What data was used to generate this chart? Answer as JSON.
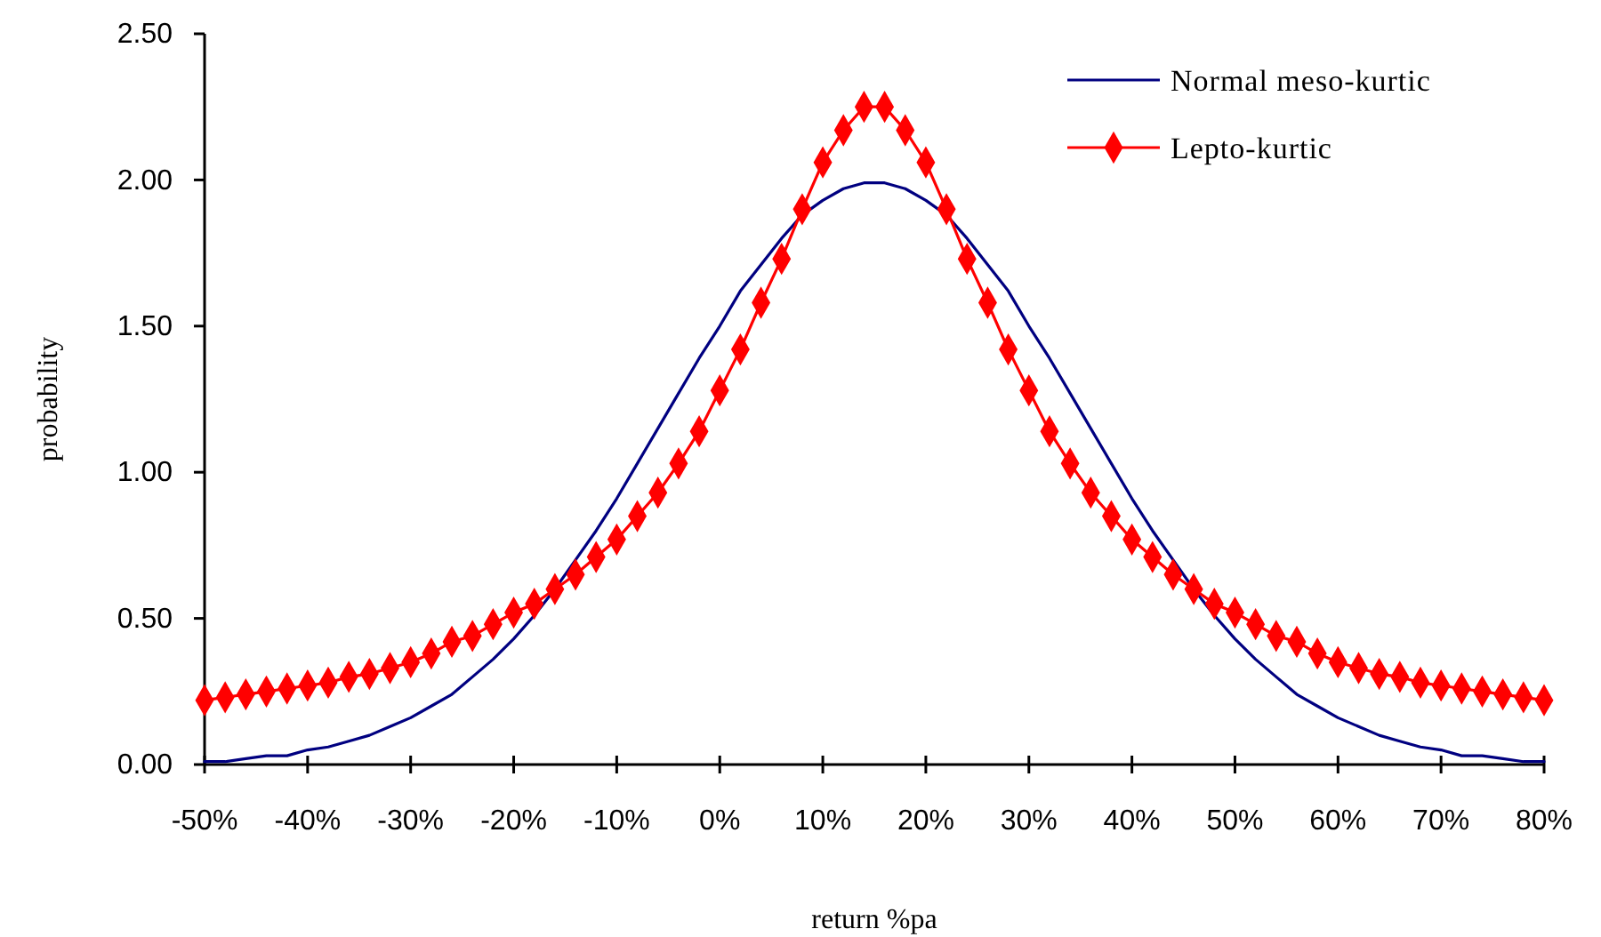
{
  "chart_data": {
    "type": "line",
    "xlabel": "return %pa",
    "ylabel": "probability",
    "x": [
      -50,
      -48,
      -46,
      -44,
      -42,
      -40,
      -38,
      -36,
      -34,
      -32,
      -30,
      -28,
      -26,
      -24,
      -22,
      -20,
      -18,
      -16,
      -14,
      -12,
      -10,
      -8,
      -6,
      -4,
      -2,
      0,
      2,
      4,
      6,
      8,
      10,
      12,
      14,
      16,
      18,
      20,
      22,
      24,
      26,
      28,
      30,
      32,
      34,
      36,
      38,
      40,
      42,
      44,
      46,
      48,
      50,
      52,
      54,
      56,
      58,
      60,
      62,
      64,
      66,
      68,
      70,
      72,
      74,
      76,
      78,
      80
    ],
    "xlim": [
      -50,
      80
    ],
    "xticks": [
      {
        "value": -50,
        "label": "-50%"
      },
      {
        "value": -40,
        "label": "-40%"
      },
      {
        "value": -30,
        "label": "-30%"
      },
      {
        "value": -20,
        "label": "-20%"
      },
      {
        "value": -10,
        "label": "-10%"
      },
      {
        "value": 0,
        "label": "0%"
      },
      {
        "value": 10,
        "label": "10%"
      },
      {
        "value": 20,
        "label": "20%"
      },
      {
        "value": 30,
        "label": "30%"
      },
      {
        "value": 40,
        "label": "40%"
      },
      {
        "value": 50,
        "label": "50%"
      },
      {
        "value": 60,
        "label": "60%"
      },
      {
        "value": 70,
        "label": "70%"
      },
      {
        "value": 80,
        "label": "80%"
      }
    ],
    "ylim": [
      0,
      2.5
    ],
    "yticks": [
      {
        "value": 0,
        "label": "0.00"
      },
      {
        "value": 0.5,
        "label": "0.50"
      },
      {
        "value": 1,
        "label": "1.00"
      },
      {
        "value": 1.5,
        "label": "1.50"
      },
      {
        "value": 2,
        "label": "2.00"
      },
      {
        "value": 2.5,
        "label": "2.50"
      }
    ],
    "legend": "top right",
    "grid": false,
    "series": [
      {
        "name": "Normal meso-kurtic",
        "color": "#000080",
        "values": [
          0.01,
          0.01,
          0.02,
          0.03,
          0.03,
          0.05,
          0.06,
          0.08,
          0.1,
          0.13,
          0.16,
          0.2,
          0.24,
          0.3,
          0.36,
          0.43,
          0.51,
          0.6,
          0.7,
          0.8,
          0.91,
          1.03,
          1.15,
          1.27,
          1.39,
          1.5,
          1.62,
          1.71,
          1.8,
          1.88,
          1.93,
          1.97,
          1.99,
          1.99,
          1.97,
          1.93,
          1.88,
          1.8,
          1.71,
          1.62,
          1.5,
          1.39,
          1.27,
          1.15,
          1.03,
          0.91,
          0.8,
          0.7,
          0.6,
          0.51,
          0.43,
          0.36,
          0.3,
          0.24,
          0.2,
          0.16,
          0.13,
          0.1,
          0.08,
          0.06,
          0.05,
          0.03,
          0.03,
          0.02,
          0.01,
          0.01
        ]
      },
      {
        "name": "Lepto-kurtic",
        "color": "#ff0000",
        "marker": "diamond",
        "values": [
          0.22,
          0.23,
          0.24,
          0.25,
          0.26,
          0.27,
          0.28,
          0.3,
          0.31,
          0.33,
          0.35,
          0.38,
          0.42,
          0.44,
          0.48,
          0.52,
          0.55,
          0.6,
          0.65,
          0.71,
          0.77,
          0.85,
          0.93,
          1.03,
          1.14,
          1.28,
          1.42,
          1.58,
          1.73,
          1.9,
          2.06,
          2.17,
          2.25,
          2.25,
          2.17,
          2.06,
          1.9,
          1.73,
          1.58,
          1.42,
          1.28,
          1.14,
          1.03,
          0.93,
          0.85,
          0.77,
          0.71,
          0.65,
          0.6,
          0.55,
          0.52,
          0.48,
          0.44,
          0.42,
          0.38,
          0.35,
          0.33,
          0.31,
          0.3,
          0.28,
          0.27,
          0.26,
          0.25,
          0.24,
          0.23,
          0.22
        ]
      }
    ]
  }
}
